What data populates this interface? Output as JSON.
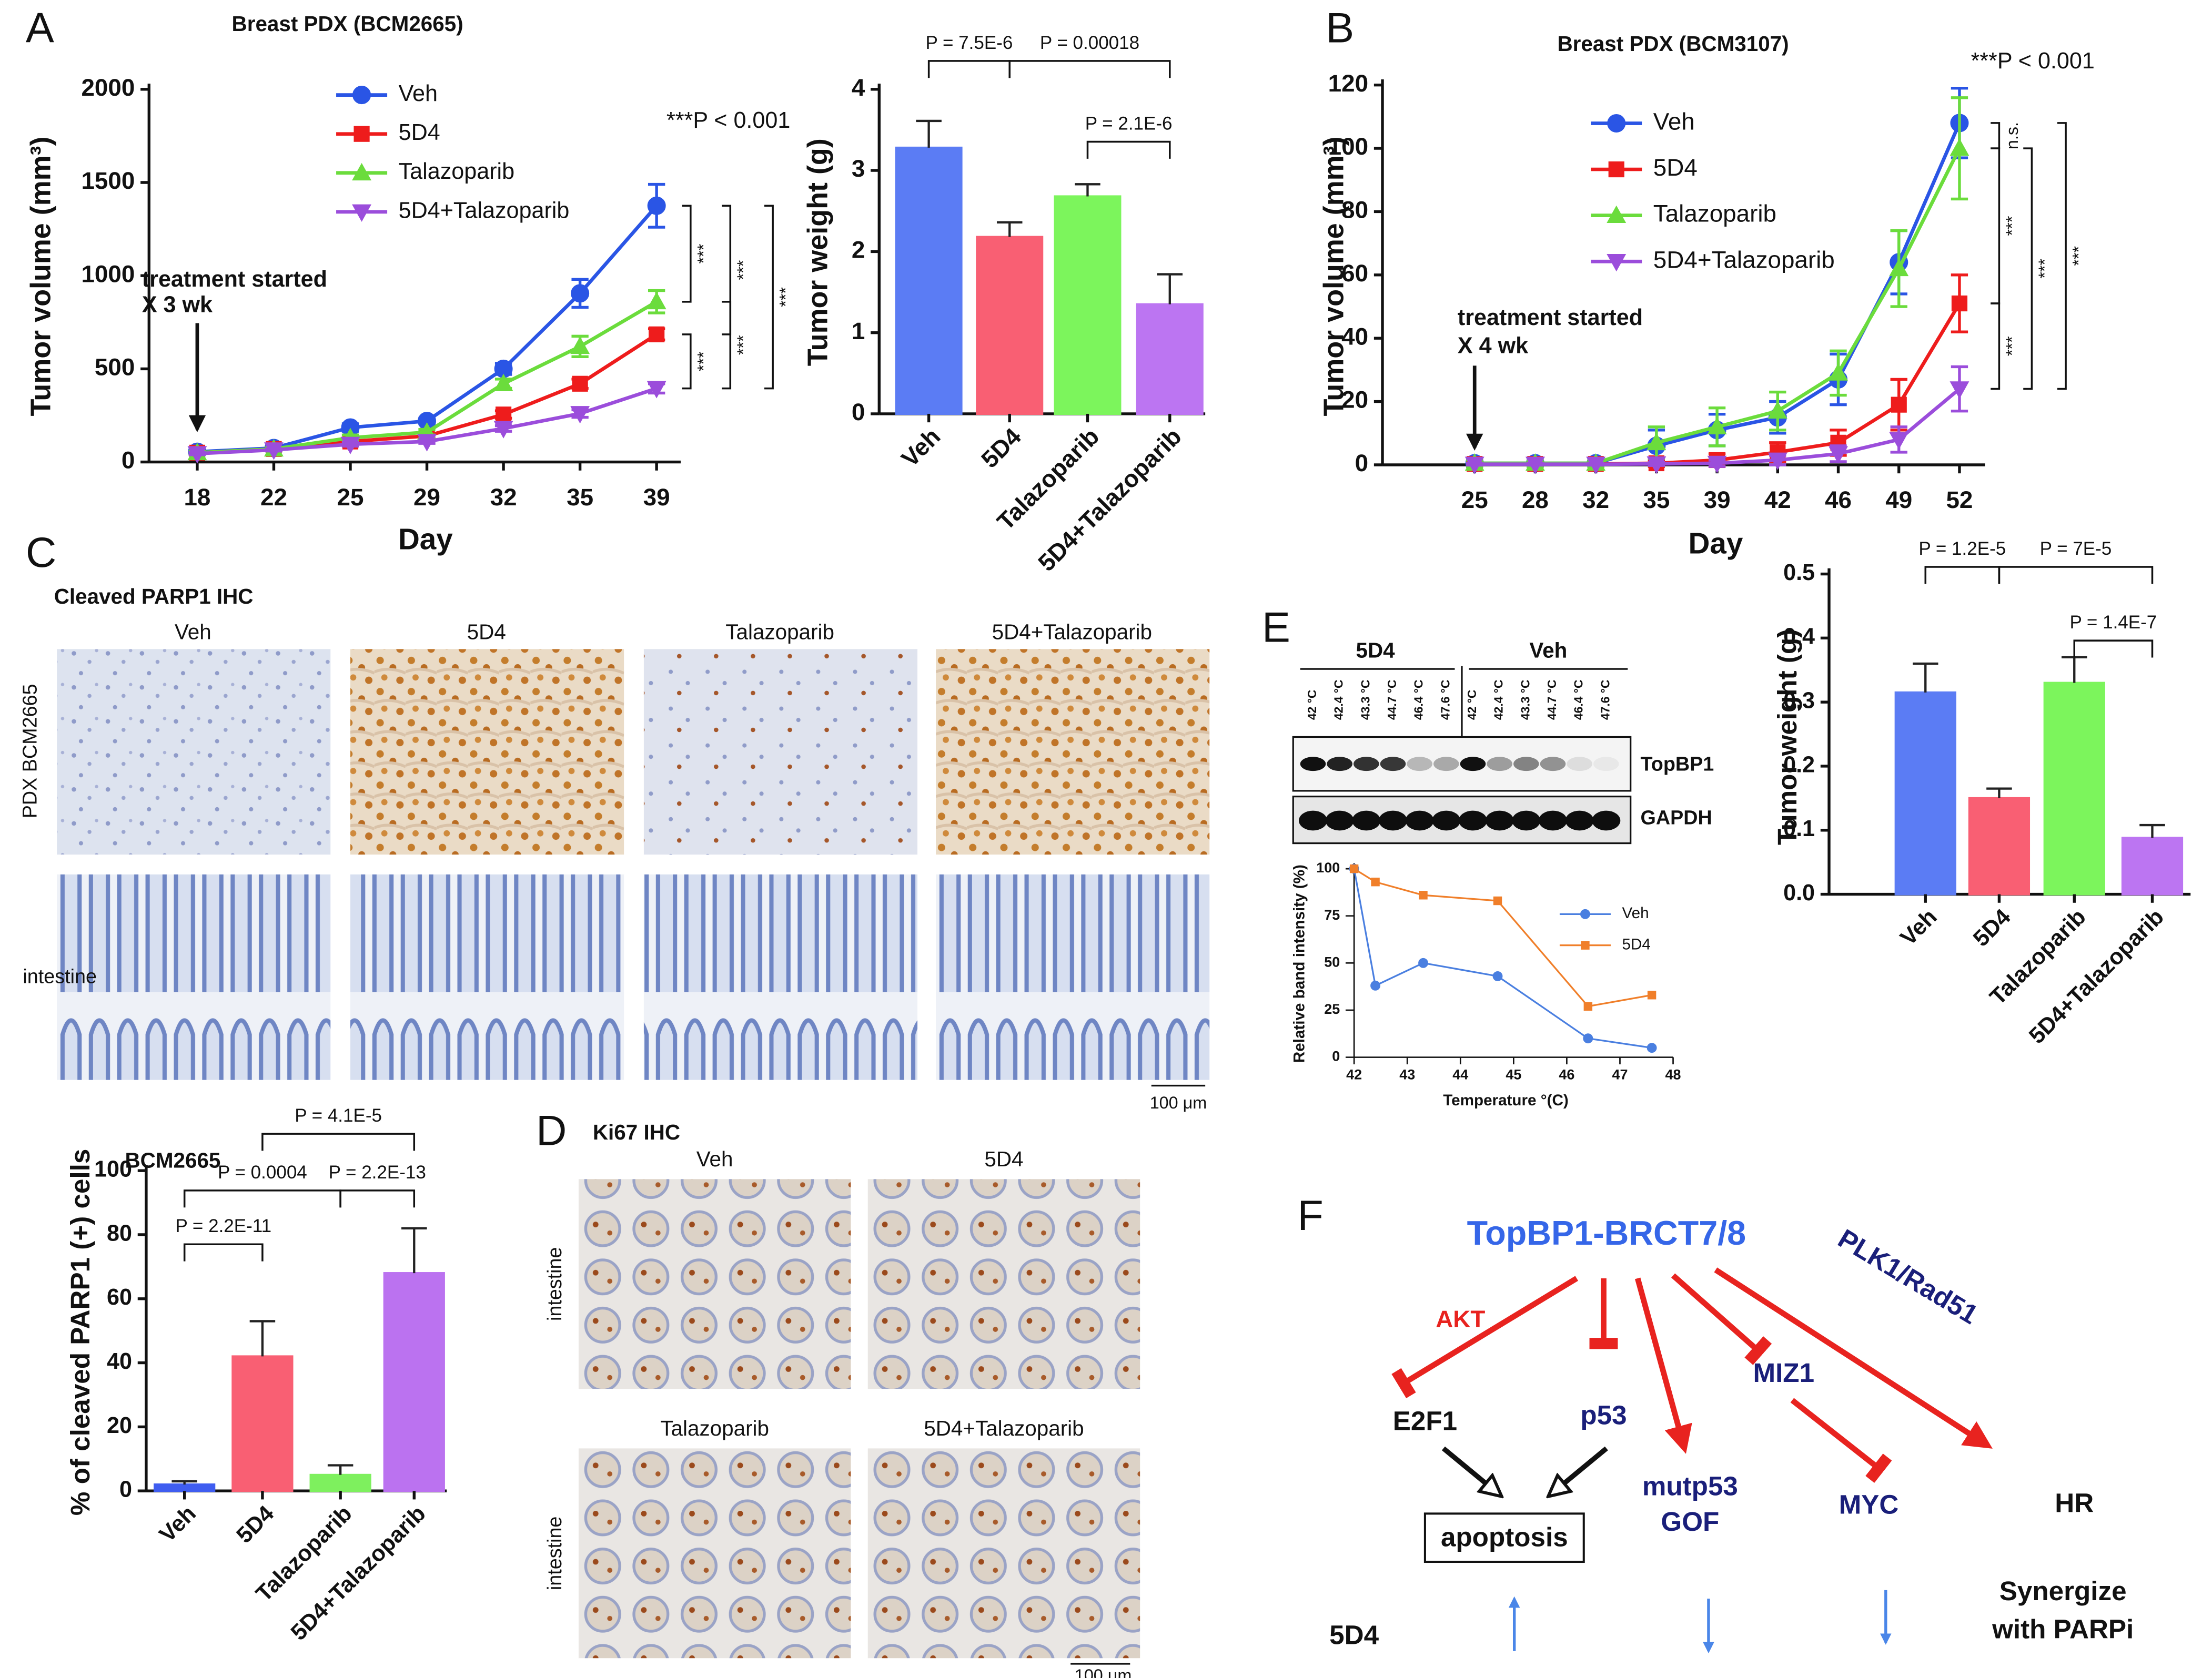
{
  "panel_letters": [
    "A",
    "B",
    "C",
    "D",
    "E",
    "F"
  ],
  "chart_data": [
    {
      "type": "line",
      "title": "Breast PDX (BCM2665)",
      "x_label": "Day",
      "y_label": "Tumor volume (mm³)",
      "categories": [
        "18",
        "22",
        "25",
        "29",
        "32",
        "35",
        "39"
      ],
      "ylim": [
        0,
        2000
      ],
      "yticks": [
        0,
        500,
        1000,
        1500,
        2000
      ],
      "series": [
        {
          "name": "Veh",
          "color": "#2a55e5",
          "marker": "circle",
          "values": [
            55,
            75,
            185,
            220,
            500,
            905,
            1375
          ],
          "errors": [
            10,
            10,
            20,
            15,
            30,
            75,
            115
          ]
        },
        {
          "name": "5D4",
          "color": "#ee1c1c",
          "marker": "square",
          "values": [
            50,
            70,
            110,
            140,
            255,
            420,
            685
          ],
          "errors": [
            8,
            8,
            12,
            12,
            20,
            25,
            30
          ]
        },
        {
          "name": "Talazoparib",
          "color": "#6bdc3c",
          "marker": "triangle",
          "values": [
            50,
            70,
            130,
            160,
            420,
            620,
            860
          ],
          "errors": [
            8,
            8,
            15,
            15,
            25,
            55,
            60
          ]
        },
        {
          "name": "5D4+Talazoparib",
          "color": "#9b4ddb",
          "marker": "tri-down",
          "values": [
            45,
            65,
            95,
            110,
            180,
            260,
            395
          ],
          "errors": [
            6,
            6,
            10,
            10,
            15,
            20,
            25
          ]
        }
      ],
      "annotations": [
        "treatment started",
        "X 3 wk",
        "***P < 0.001"
      ],
      "brackets": [
        "***",
        "***",
        "***",
        "***",
        "***"
      ]
    },
    {
      "type": "bar",
      "y_label": "Tumor weight (g)",
      "categories": [
        "Veh",
        "5D4",
        "Talazoparib",
        "5D4+Talazoparib"
      ],
      "values": [
        3.28,
        2.18,
        2.68,
        1.35
      ],
      "errors": [
        0.33,
        0.18,
        0.15,
        0.37
      ],
      "colors": [
        "#5b7cf4",
        "#f95f73",
        "#7cf55c",
        "#bc75f2"
      ],
      "ylim": [
        0,
        4
      ],
      "yticks": [
        0,
        1,
        2,
        3,
        4
      ],
      "comparisons": [
        "P = 7.5E-6",
        "P = 0.00018",
        "P = 2.1E-6"
      ]
    },
    {
      "type": "line",
      "title": "Breast PDX (BCM3107)",
      "x_label": "Day",
      "y_label": "Tumor volume (mm³)",
      "categories": [
        "25",
        "28",
        "32",
        "35",
        "39",
        "42",
        "46",
        "49",
        "52"
      ],
      "ylim": [
        0,
        120
      ],
      "yticks": [
        0,
        20,
        40,
        60,
        80,
        100,
        120
      ],
      "series": [
        {
          "name": "Veh",
          "color": "#2a55e5",
          "marker": "circle",
          "values": [
            0.5,
            0.5,
            0.5,
            6,
            11,
            15,
            27,
            64,
            108
          ],
          "errors": [
            1,
            1,
            1,
            5,
            5,
            5,
            8,
            10,
            11
          ]
        },
        {
          "name": "5D4",
          "color": "#ee1c1c",
          "marker": "square",
          "values": [
            0.3,
            0.3,
            0.3,
            0.5,
            1.5,
            4,
            7,
            19,
            51
          ],
          "errors": [
            0.5,
            0.5,
            0.5,
            1,
            2,
            3,
            4,
            8,
            9
          ]
        },
        {
          "name": "Talazoparib",
          "color": "#6bdc3c",
          "marker": "triangle",
          "values": [
            0.5,
            0.5,
            0.5,
            7,
            12,
            17,
            29,
            62,
            100
          ],
          "errors": [
            1,
            1,
            1,
            5,
            6,
            6,
            7,
            12,
            16
          ]
        },
        {
          "name": "5D4+Talazoparib",
          "color": "#9b4ddb",
          "marker": "tri-down",
          "values": [
            0.2,
            0.2,
            0.2,
            0.3,
            0.5,
            1.5,
            3.5,
            8,
            24
          ],
          "errors": [
            0.3,
            0.3,
            0.3,
            0.5,
            1,
            1.5,
            2.5,
            4,
            7
          ]
        }
      ],
      "annotations": [
        "treatment started",
        "X 4 wk",
        "***P < 0.001"
      ],
      "brackets": [
        "n.s.",
        "***",
        "***",
        "***",
        "***"
      ]
    },
    {
      "type": "bar",
      "title": "BCM2665",
      "y_label": "% of cleaved PARP1 (+) cells",
      "categories": [
        "Veh",
        "5D4",
        "Talazoparib",
        "5D4+Talazoparib"
      ],
      "values": [
        2,
        42,
        5,
        68
      ],
      "errors": [
        1,
        11,
        3,
        14
      ],
      "colors": [
        "#3f5df0",
        "#f95f73",
        "#7ef05e",
        "#bb72f0"
      ],
      "ylim": [
        0,
        100
      ],
      "yticks": [
        0,
        20,
        40,
        60,
        80,
        100
      ],
      "comparisons": [
        "P = 2.2E-11",
        "P = 0.0004",
        "P = 2.2E-13",
        "P = 4.1E-5"
      ]
    },
    {
      "type": "line",
      "x_label": "Temperature °(C)",
      "y_label": "Relative band intensity (%)",
      "x": [
        42,
        42.4,
        43.3,
        44.7,
        46.4,
        47.6
      ],
      "xlim": [
        42,
        48
      ],
      "xticks": [
        42,
        43,
        44,
        45,
        46,
        47,
        48
      ],
      "ylim": [
        0,
        100
      ],
      "yticks": [
        0,
        25,
        50,
        75,
        100
      ],
      "series": [
        {
          "name": "Veh",
          "color": "#4a7fe0",
          "marker": "circle",
          "values": [
            100,
            38,
            50,
            43,
            10,
            5
          ]
        },
        {
          "name": "5D4",
          "color": "#f07f2a",
          "marker": "square",
          "values": [
            100,
            93,
            86,
            83,
            27,
            33
          ]
        }
      ]
    },
    {
      "type": "bar",
      "y_label": "Tumor weight (g)",
      "categories": [
        "Veh",
        "5D4",
        "Talazoparib",
        "5D4+Talazoparib"
      ],
      "values": [
        0.315,
        0.15,
        0.33,
        0.088
      ],
      "errors": [
        0.045,
        0.015,
        0.04,
        0.02
      ],
      "colors": [
        "#5b7cf4",
        "#f95f73",
        "#7cf55c",
        "#bc75f2"
      ],
      "ylim": [
        0,
        0.5
      ],
      "yticks": [
        {
          "value": 0,
          "label": "0.0"
        },
        0.1,
        0.2,
        0.3,
        0.4,
        0.5
      ],
      "comparisons": [
        "P = 1.2E-5",
        "P = 7E-5",
        "P = 1.4E-7"
      ]
    }
  ],
  "ihc_c": {
    "title": "Cleaved PARP1 IHC",
    "columns": [
      "Veh",
      "5D4",
      "Talazoparib",
      "5D4+Talazoparib"
    ],
    "rows": [
      "PDX BCM2665",
      "intestine"
    ],
    "scale": "100 μm"
  },
  "ihc_d": {
    "title": "Ki67 IHC",
    "panels": [
      "Veh",
      "5D4",
      "Talazoparib",
      "5D4+Talazoparib"
    ],
    "rows": [
      "intestine",
      "intestine"
    ],
    "scale": "100 μm"
  },
  "blot": {
    "groups": [
      "5D4",
      "Veh"
    ],
    "lanes": [
      "42 °C",
      "42.4 °C",
      "43.3 °C",
      "44.7 °C",
      "46.4 °C",
      "47.6 °C",
      "42 °C",
      "42.4 °C",
      "43.3 °C",
      "44.7 °C",
      "46.4 °C",
      "47.6 °C"
    ],
    "rows": [
      "TopBP1",
      "GAPDH"
    ]
  },
  "diagram": {
    "title": "TopBP1-BRCT7/8",
    "nodes": [
      "AKT",
      "E2F1",
      "p53",
      "MIZ1",
      "PLK1/Rad51",
      "apoptosis",
      "mutp53",
      "GOF",
      "MYC",
      "HR"
    ],
    "row_label": "5D4",
    "outcome": [
      "Synergize",
      "with PARPi"
    ]
  }
}
